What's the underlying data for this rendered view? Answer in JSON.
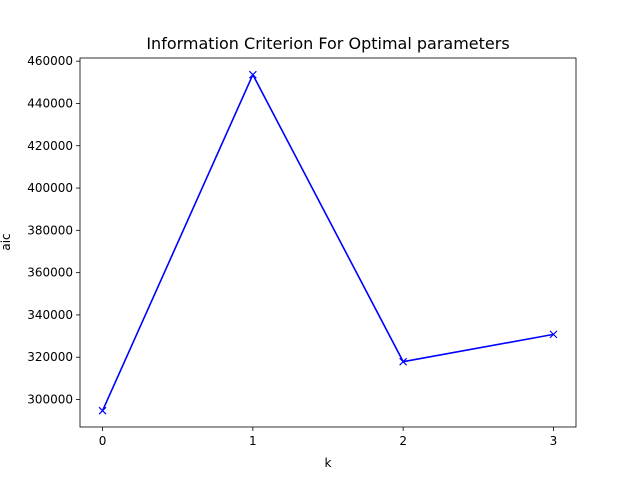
{
  "chart_data": {
    "type": "line",
    "title": "Information Criterion For Optimal parameters",
    "xlabel": "k",
    "ylabel": "aic",
    "x": [
      0,
      1,
      2,
      3
    ],
    "xticks": [
      "0",
      "1",
      "2",
      "3"
    ],
    "yticks": [
      "300000",
      "320000",
      "340000",
      "360000",
      "380000",
      "400000",
      "420000",
      "440000",
      "460000"
    ],
    "ytick_values": [
      300000,
      320000,
      340000,
      360000,
      380000,
      400000,
      420000,
      440000,
      460000
    ],
    "xlim": [
      -0.15,
      3.15
    ],
    "ylim": [
      287000,
      461500
    ],
    "grid": false,
    "series": [
      {
        "values": [
          294700,
          453600,
          317900,
          330800
        ],
        "color": "#0000ff",
        "marker": "x"
      }
    ]
  }
}
